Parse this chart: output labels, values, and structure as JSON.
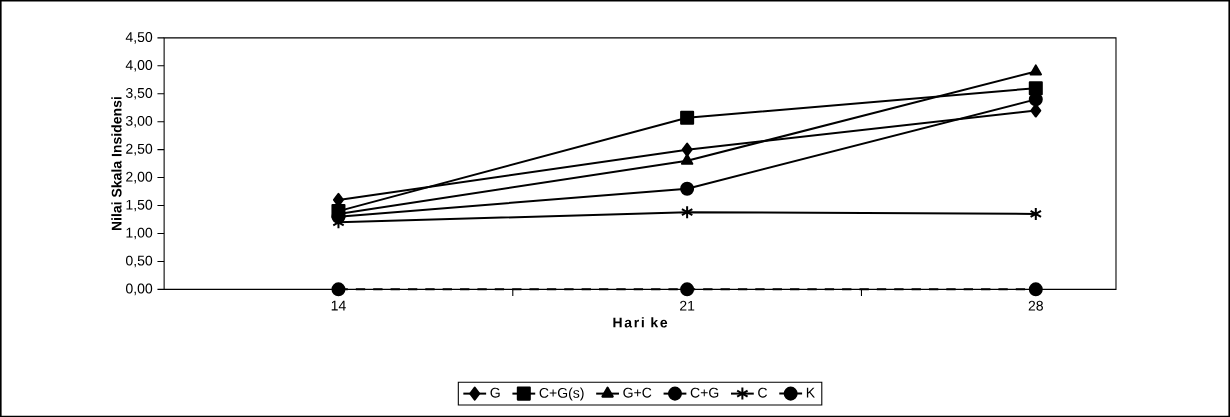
{
  "chart_data": {
    "type": "line",
    "xlabel": "Hari ke",
    "ylabel": "Nilai Skala Insidensi",
    "categories": [
      "14",
      "21",
      "28"
    ],
    "series": [
      {
        "name": "G",
        "color": "#000000",
        "marker": "diamond",
        "line_style": "solid",
        "values": [
          1.6,
          2.5,
          3.2
        ]
      },
      {
        "name": "C+G(s)",
        "color": "#000000",
        "marker": "square",
        "line_style": "solid",
        "values": [
          1.4,
          3.07,
          3.6
        ]
      },
      {
        "name": "G+C",
        "color": "#000000",
        "marker": "triangle",
        "line_style": "solid",
        "values": [
          1.35,
          2.3,
          3.9
        ]
      },
      {
        "name": "C+G",
        "color": "#000000",
        "marker": "circle",
        "line_style": "solid",
        "values": [
          1.3,
          1.8,
          3.4
        ]
      },
      {
        "name": "C",
        "color": "#000000",
        "marker": "cross",
        "line_style": "solid",
        "values": [
          1.2,
          1.38,
          1.35
        ]
      },
      {
        "name": "K",
        "color": "#000000",
        "marker": "circle",
        "line_style": "dashed",
        "values": [
          0,
          0,
          0
        ]
      }
    ],
    "ylim": [
      0,
      4.5
    ],
    "yticks": [
      {
        "value": 0,
        "label": "0,00"
      },
      {
        "value": 0.5,
        "label": "0,50"
      },
      {
        "value": 1,
        "label": "1,00"
      },
      {
        "value": 1.5,
        "label": "1,50"
      },
      {
        "value": 2,
        "label": "2,00"
      },
      {
        "value": 2.5,
        "label": "2,50"
      },
      {
        "value": 3,
        "label": "3,00"
      },
      {
        "value": 3.5,
        "label": "3,50"
      },
      {
        "value": 4,
        "label": "4,00"
      },
      {
        "value": 4.5,
        "label": "4,50"
      }
    ],
    "legend": "bottom",
    "grid": false
  }
}
